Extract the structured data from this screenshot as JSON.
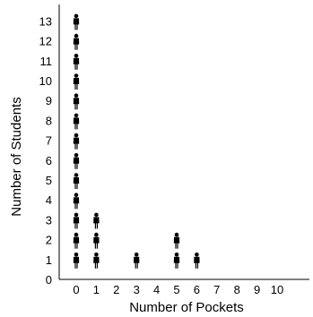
{
  "chart_data": {
    "type": "scatter",
    "title": "",
    "xlabel": "Number of Pockets",
    "ylabel": "Number of Students",
    "x_ticks": [
      "0",
      "1",
      "2",
      "3",
      "4",
      "5",
      "6",
      "7",
      "8",
      "9",
      "10"
    ],
    "y_ticks": [
      "0",
      "1",
      "2",
      "3",
      "4",
      "5",
      "6",
      "7",
      "8",
      "9",
      "10",
      "11",
      "12",
      "13"
    ],
    "xlim": [
      0,
      10
    ],
    "ylim": [
      0,
      13
    ],
    "grid": false,
    "marker": "person-figure",
    "counts": [
      {
        "x": 0,
        "count": 13
      },
      {
        "x": 1,
        "count": 3
      },
      {
        "x": 2,
        "count": 0
      },
      {
        "x": 3,
        "count": 1
      },
      {
        "x": 4,
        "count": 0
      },
      {
        "x": 5,
        "count": 2
      },
      {
        "x": 6,
        "count": 1
      },
      {
        "x": 7,
        "count": 0
      },
      {
        "x": 8,
        "count": 0
      },
      {
        "x": 9,
        "count": 0
      },
      {
        "x": 10,
        "count": 0
      }
    ]
  }
}
